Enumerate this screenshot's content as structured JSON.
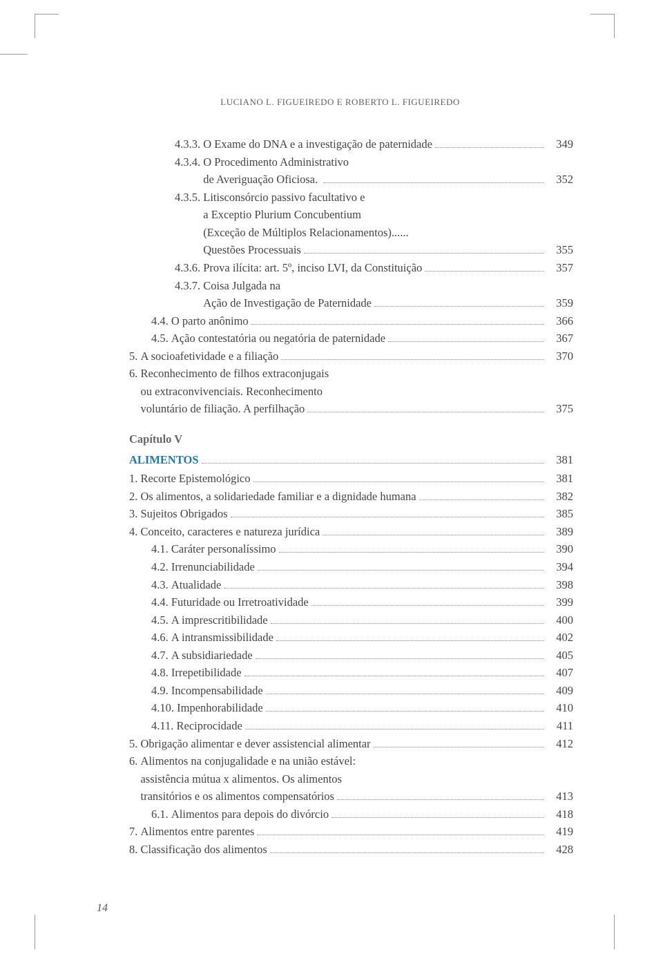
{
  "header": {
    "authors": "LUCIANO L. FIGUEIREDO   E   ROBERTO L. FIGUEIREDO"
  },
  "pageNumber": "14",
  "entries": [
    {
      "indent": 3,
      "num": "4.3.3.",
      "text": "O Exame do DNA e a investigação de paternidade",
      "page": "349"
    },
    {
      "indent": 3,
      "num": "4.3.4.",
      "text": "O Procedimento Administrativo",
      "cont": [
        "de Averiguação Oficiosa. "
      ],
      "page": "352"
    },
    {
      "indent": 3,
      "num": "4.3.5.",
      "text": "Litisconsórcio passivo facultativo e",
      "cont": [
        "a Exceptio Plurium Concubentium",
        "(Exceção de Múltiplos Relacionamentos)......",
        "Questões Processuais"
      ],
      "page": "355"
    },
    {
      "indent": 3,
      "num": "4.3.6.",
      "text": "Prova ilícita: art. 5º, inciso LVI, da Constituição",
      "page": "357"
    },
    {
      "indent": 3,
      "num": "4.3.7.",
      "text": "Coisa Julgada na",
      "cont": [
        "Ação de Investigação de Paternidade"
      ],
      "page": "359"
    },
    {
      "indent": 2,
      "num": "4.4.",
      "text": "O parto anônimo",
      "page": "366"
    },
    {
      "indent": 2,
      "num": "4.5.",
      "text": "Ação contestatória ou negatória de paternidade",
      "page": "367"
    },
    {
      "indent": 1,
      "num": "5.",
      "text": "A socioafetividade e a filiação",
      "page": "370"
    },
    {
      "indent": 1,
      "num": "6.",
      "text": "Reconhecimento de filhos extraconjugais",
      "cont": [
        "ou extraconvivenciais. Reconhecimento",
        "voluntário de filiação. A perfilhação"
      ],
      "page": "375"
    },
    {
      "type": "chapter-sub",
      "text": "Capítulo V"
    },
    {
      "type": "chapter-title",
      "indent": 1,
      "num": "",
      "text": "ALIMENTOS",
      "page": "381"
    },
    {
      "indent": 1,
      "num": "1.",
      "text": "Recorte Epistemológico",
      "page": "381"
    },
    {
      "indent": 1,
      "num": "2.",
      "text": "Os alimentos, a solidariedade familiar e a dignidade humana",
      "page": "382"
    },
    {
      "indent": 1,
      "num": "3.",
      "text": "Sujeitos Obrigados",
      "page": "385"
    },
    {
      "indent": 1,
      "num": "4.",
      "text": "Conceito, caracteres e natureza jurídica",
      "page": "389"
    },
    {
      "indent": 2,
      "num": "4.1.",
      "text": "Caráter personalíssimo",
      "page": "390"
    },
    {
      "indent": 2,
      "num": "4.2.",
      "text": "Irrenunciabilidade",
      "page": "394"
    },
    {
      "indent": 2,
      "num": "4.3.",
      "text": "Atualidade",
      "page": "398"
    },
    {
      "indent": 2,
      "num": "4.4.",
      "text": "Futuridade ou Irretroatividade",
      "page": "399"
    },
    {
      "indent": 2,
      "num": "4.5.",
      "text": "A imprescritibilidade",
      "page": "400"
    },
    {
      "indent": 2,
      "num": "4.6.",
      "text": "A intransmissibilidade",
      "page": "402"
    },
    {
      "indent": 2,
      "num": "4.7.",
      "text": "A subsidiariedade",
      "page": "405"
    },
    {
      "indent": 2,
      "num": "4.8.",
      "text": "Irrepetibilidade",
      "page": "407"
    },
    {
      "indent": 2,
      "num": "4.9.",
      "text": "Incompensabilidade",
      "page": "409"
    },
    {
      "indent": 2,
      "num": "4.10.",
      "text": "Impenhorabilidade",
      "page": "410"
    },
    {
      "indent": 2,
      "num": "4.11.",
      "text": "Reciprocidade",
      "page": "411"
    },
    {
      "indent": 1,
      "num": "5.",
      "text": "Obrigação alimentar e dever assistencial alimentar",
      "page": "412"
    },
    {
      "indent": 1,
      "num": "6.",
      "text": "Alimentos na conjugalidade e na união estável:",
      "cont": [
        "assistência mútua x alimentos. Os alimentos",
        "transitórios e os alimentos compensatórios"
      ],
      "page": "413"
    },
    {
      "indent": 2,
      "num": "6.1.",
      "text": "Alimentos para depois do divórcio",
      "page": "418"
    },
    {
      "indent": 1,
      "num": "7.",
      "text": "Alimentos entre parentes",
      "page": "419"
    },
    {
      "indent": 1,
      "num": "8.",
      "text": "Classificação dos alimentos",
      "page": "428"
    }
  ]
}
